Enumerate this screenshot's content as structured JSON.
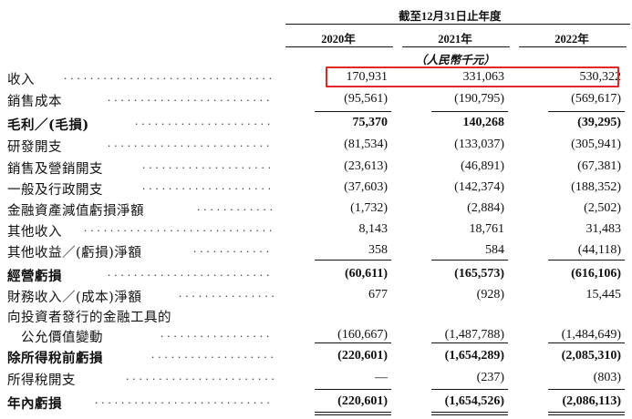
{
  "header": {
    "period_title": "截至12月31日止年度",
    "years": [
      "2020年",
      "2021年",
      "2022年"
    ],
    "unit": "（人民幣千元）"
  },
  "rows": [
    {
      "label": "收入",
      "bold": false,
      "values": [
        "170,931",
        "331,063",
        "530,322"
      ],
      "highlighted": true
    },
    {
      "label": "銷售成本",
      "bold": false,
      "values": [
        "(95,561)",
        "(190,795)",
        "(569,617)"
      ]
    },
    {
      "label": "毛利／(毛損)",
      "bold": true,
      "values": [
        "75,370",
        "140,268",
        "(39,295)"
      ]
    },
    {
      "label": "研發開支",
      "bold": false,
      "values": [
        "(81,534)",
        "(133,037)",
        "(305,941)"
      ]
    },
    {
      "label": "銷售及營銷開支",
      "bold": false,
      "values": [
        "(23,613)",
        "(46,891)",
        "(67,381)"
      ]
    },
    {
      "label": "一般及行政開支",
      "bold": false,
      "values": [
        "(37,603)",
        "(142,374)",
        "(188,352)"
      ]
    },
    {
      "label": "金融資產減值虧損淨額",
      "bold": false,
      "values": [
        "(1,732)",
        "(2,884)",
        "(2,502)"
      ]
    },
    {
      "label": "其他收入",
      "bold": false,
      "values": [
        "8,143",
        "18,761",
        "31,483"
      ]
    },
    {
      "label": "其他收益／(虧損)淨額",
      "bold": false,
      "values": [
        "358",
        "584",
        "(44,118)"
      ]
    },
    {
      "label": "經營虧損",
      "bold": true,
      "values": [
        "(60,611)",
        "(165,573)",
        "(616,106)"
      ]
    },
    {
      "label": "財務收入／(成本)淨額",
      "bold": false,
      "values": [
        "677",
        "(928)",
        "15,445"
      ]
    },
    {
      "label": "向投資者發行的金融工具的",
      "bold": false,
      "values": [
        "",
        "",
        ""
      ]
    },
    {
      "label": "　公允價值變動",
      "bold": false,
      "values": [
        "(160,667)",
        "(1,487,788)",
        "(1,484,649)"
      ]
    },
    {
      "label": "除所得稅前虧損",
      "bold": true,
      "values": [
        "(220,601)",
        "(1,654,289)",
        "(2,085,310)"
      ]
    },
    {
      "label": "所得稅開支",
      "bold": false,
      "values": [
        "—",
        "(237)",
        "(803)"
      ]
    },
    {
      "label": "年內虧損",
      "bold": true,
      "values": [
        "(220,601)",
        "(1,654,526)",
        "(2,086,113)"
      ]
    }
  ],
  "colors": {
    "highlight_box": "#e0272a",
    "text": "#111111"
  }
}
